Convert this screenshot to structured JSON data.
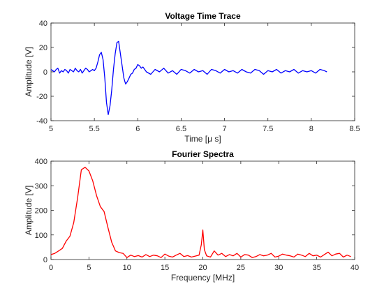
{
  "chart_data": [
    {
      "type": "line",
      "title": "Voltage Time Trace",
      "xlabel": "Time [μ s]",
      "ylabel": "Amplitude [V]",
      "xlim": [
        5,
        8.5
      ],
      "ylim": [
        -40,
        40
      ],
      "xticks": [
        5,
        5.5,
        6,
        6.5,
        7,
        7.5,
        8,
        8.5
      ],
      "yticks": [
        -40,
        -20,
        0,
        20,
        40
      ],
      "xtick_labels": [
        "5",
        "5.5",
        "6",
        "6.5",
        "7",
        "7.5",
        "8",
        "8.5"
      ],
      "ytick_labels": [
        "-40",
        "-20",
        "0",
        "20",
        "40"
      ],
      "grid": false,
      "color": "#0000ff",
      "series": [
        {
          "x": [
            5.0,
            5.02,
            5.04,
            5.06,
            5.08,
            5.1,
            5.12,
            5.14,
            5.16,
            5.18,
            5.2,
            5.22,
            5.24,
            5.26,
            5.28,
            5.3,
            5.32,
            5.34,
            5.36,
            5.38,
            5.4,
            5.42,
            5.44,
            5.46,
            5.48,
            5.5,
            5.52,
            5.54,
            5.56,
            5.58,
            5.6,
            5.62,
            5.64,
            5.66,
            5.68,
            5.7,
            5.72,
            5.74,
            5.76,
            5.78,
            5.8,
            5.82,
            5.84,
            5.86,
            5.88,
            5.9,
            5.92,
            5.94,
            5.96,
            5.98,
            6.0,
            6.02,
            6.04,
            6.06,
            6.08,
            6.1,
            6.15,
            6.2,
            6.25,
            6.3,
            6.35,
            6.4,
            6.45,
            6.5,
            6.55,
            6.6,
            6.65,
            6.7,
            6.75,
            6.8,
            6.85,
            6.9,
            6.95,
            7.0,
            7.05,
            7.1,
            7.15,
            7.2,
            7.25,
            7.3,
            7.35,
            7.4,
            7.45,
            7.5,
            7.55,
            7.6,
            7.65,
            7.7,
            7.75,
            7.8,
            7.85,
            7.9,
            7.95,
            8.0,
            8.05,
            8.1,
            8.15,
            8.18
          ],
          "y": [
            2,
            1,
            0,
            2,
            3,
            -1,
            1,
            0,
            2,
            1,
            -1,
            2,
            1,
            0,
            3,
            1,
            0,
            2,
            -1,
            1,
            3,
            2,
            0,
            1,
            2,
            1,
            3,
            8,
            14,
            16,
            10,
            -5,
            -25,
            -35,
            -28,
            -15,
            2,
            15,
            24,
            25,
            15,
            5,
            -5,
            -10,
            -8,
            -5,
            -2,
            -1,
            2,
            3,
            6,
            5,
            3,
            4,
            2,
            0,
            -2,
            2,
            0,
            3,
            -1,
            1,
            -2,
            2,
            1,
            -1,
            2,
            0,
            1,
            -2,
            2,
            1,
            -1,
            2,
            0,
            1,
            -1,
            2,
            0,
            -1,
            2,
            1,
            -2,
            1,
            0,
            2,
            -1,
            1,
            0,
            2,
            -1,
            1,
            0,
            1,
            -1,
            2,
            1,
            0
          ]
        }
      ]
    },
    {
      "type": "line",
      "title": "Fourier Spectra",
      "xlabel": "Frequency [MHz]",
      "ylabel": "Amplitude [V]",
      "xlim": [
        0,
        40
      ],
      "ylim": [
        0,
        400
      ],
      "xticks": [
        0,
        5,
        10,
        15,
        20,
        25,
        30,
        35,
        40
      ],
      "yticks": [
        0,
        100,
        200,
        300,
        400
      ],
      "xtick_labels": [
        "0",
        "5",
        "10",
        "15",
        "20",
        "25",
        "30",
        "35",
        "40"
      ],
      "ytick_labels": [
        "0",
        "100",
        "200",
        "300",
        "400"
      ],
      "grid": false,
      "color": "#ff0000",
      "series": [
        {
          "x": [
            0,
            0.5,
            1,
            1.5,
            2,
            2.5,
            3,
            3.5,
            4,
            4.5,
            5,
            5.5,
            6,
            6.5,
            7,
            7.5,
            8,
            8.5,
            9,
            9.5,
            10,
            10.5,
            11,
            11.5,
            12,
            12.5,
            13,
            13.5,
            14,
            14.5,
            15,
            15.5,
            16,
            16.5,
            17,
            17.5,
            18,
            18.5,
            19,
            19.5,
            19.8,
            20,
            20.2,
            20.5,
            21,
            21.5,
            22,
            22.5,
            23,
            23.5,
            24,
            24.5,
            25,
            25.5,
            26,
            26.5,
            27,
            27.5,
            28,
            28.5,
            29,
            29.5,
            30,
            30.5,
            31,
            31.5,
            32,
            32.5,
            33,
            33.5,
            34,
            34.5,
            35,
            35.5,
            36,
            36.5,
            37,
            37.5,
            38,
            38.5,
            39,
            39.5
          ],
          "y": [
            20,
            25,
            35,
            45,
            75,
            95,
            150,
            250,
            365,
            375,
            360,
            320,
            260,
            215,
            195,
            130,
            70,
            35,
            28,
            25,
            8,
            18,
            12,
            16,
            10,
            20,
            12,
            18,
            15,
            8,
            22,
            14,
            10,
            18,
            25,
            12,
            16,
            10,
            14,
            18,
            60,
            120,
            40,
            15,
            10,
            35,
            18,
            25,
            12,
            20,
            15,
            25,
            10,
            20,
            18,
            8,
            12,
            20,
            15,
            18,
            25,
            10,
            14,
            22,
            18,
            15,
            10,
            22,
            18,
            12,
            25,
            15,
            18,
            10,
            20,
            30,
            15,
            22,
            25,
            10,
            18,
            12
          ]
        }
      ]
    }
  ]
}
